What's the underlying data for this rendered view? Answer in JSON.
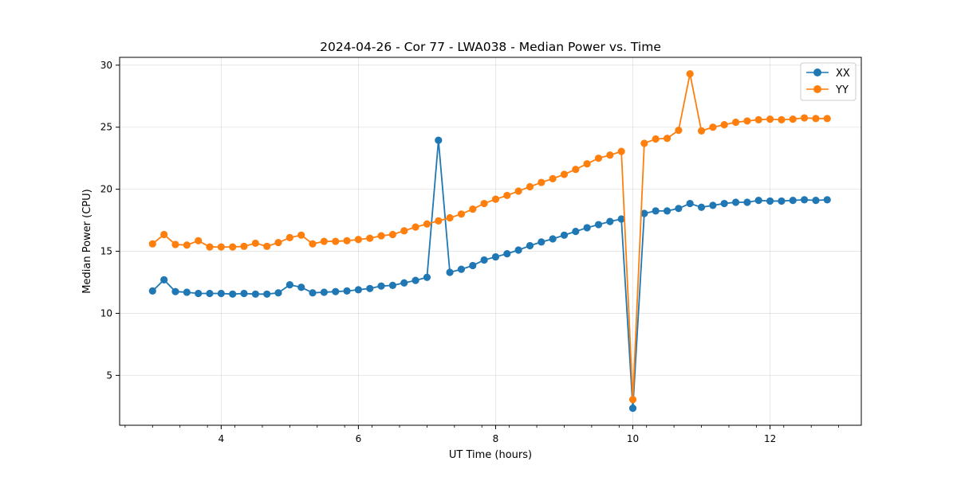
{
  "chart_data": {
    "type": "line",
    "title": "2024-04-26 - Cor 77 - LWA038 - Median Power vs. Time",
    "xlabel": "UT Time (hours)",
    "ylabel": "Median Power (CPU)",
    "xlim": [
      2.52,
      13.33
    ],
    "ylim": [
      0.98,
      30.63
    ],
    "xticks": [
      4,
      6,
      8,
      10,
      12
    ],
    "xtick_labels": [
      "4",
      "6",
      "8",
      "10",
      "12"
    ],
    "yticks": [
      5,
      10,
      15,
      20,
      25,
      30
    ],
    "ytick_labels": [
      "5",
      "10",
      "15",
      "20",
      "25",
      "30"
    ],
    "grid": true,
    "legend_position": "top-right",
    "x": [
      3.0,
      3.167,
      3.333,
      3.5,
      3.667,
      3.833,
      4.0,
      4.167,
      4.333,
      4.5,
      4.667,
      4.833,
      5.0,
      5.167,
      5.333,
      5.5,
      5.667,
      5.833,
      6.0,
      6.167,
      6.333,
      6.5,
      6.667,
      6.833,
      7.0,
      7.167,
      7.333,
      7.5,
      7.667,
      7.833,
      8.0,
      8.167,
      8.333,
      8.5,
      8.667,
      8.833,
      9.0,
      9.167,
      9.333,
      9.5,
      9.667,
      9.833,
      10.0,
      10.167,
      10.333,
      10.5,
      10.667,
      10.833,
      11.0,
      11.167,
      11.333,
      11.5,
      11.667,
      11.833,
      12.0,
      12.167,
      12.333,
      12.5,
      12.667,
      12.833
    ],
    "series": [
      {
        "name": "XX",
        "color": "#1f77b4",
        "values": [
          11.8,
          12.7,
          11.75,
          11.7,
          11.6,
          11.6,
          11.6,
          11.55,
          11.6,
          11.55,
          11.55,
          11.65,
          12.3,
          12.1,
          11.65,
          11.7,
          11.75,
          11.8,
          11.9,
          12.0,
          12.2,
          12.25,
          12.45,
          12.65,
          12.9,
          23.95,
          13.3,
          13.55,
          13.85,
          14.3,
          14.55,
          14.8,
          15.1,
          15.45,
          15.75,
          16.0,
          16.3,
          16.6,
          16.9,
          17.15,
          17.4,
          17.6,
          2.35,
          18.05,
          18.25,
          18.25,
          18.45,
          18.85,
          18.55,
          18.7,
          18.85,
          18.95,
          18.95,
          19.1,
          19.05,
          19.05,
          19.1,
          19.15,
          19.1,
          19.15
        ]
      },
      {
        "name": "YY",
        "color": "#ff7f0e",
        "values": [
          15.6,
          16.35,
          15.55,
          15.5,
          15.85,
          15.35,
          15.35,
          15.35,
          15.4,
          15.65,
          15.4,
          15.7,
          16.1,
          16.3,
          15.6,
          15.8,
          15.8,
          15.85,
          15.95,
          16.05,
          16.25,
          16.35,
          16.65,
          16.95,
          17.2,
          17.45,
          17.7,
          18.0,
          18.4,
          18.85,
          19.2,
          19.5,
          19.85,
          20.2,
          20.55,
          20.85,
          21.2,
          21.6,
          22.05,
          22.5,
          22.75,
          23.05,
          3.05,
          23.7,
          24.05,
          24.1,
          24.75,
          29.3,
          24.7,
          25.0,
          25.2,
          25.4,
          25.5,
          25.6,
          25.65,
          25.6,
          25.65,
          25.75,
          25.7,
          25.7
        ]
      }
    ]
  }
}
